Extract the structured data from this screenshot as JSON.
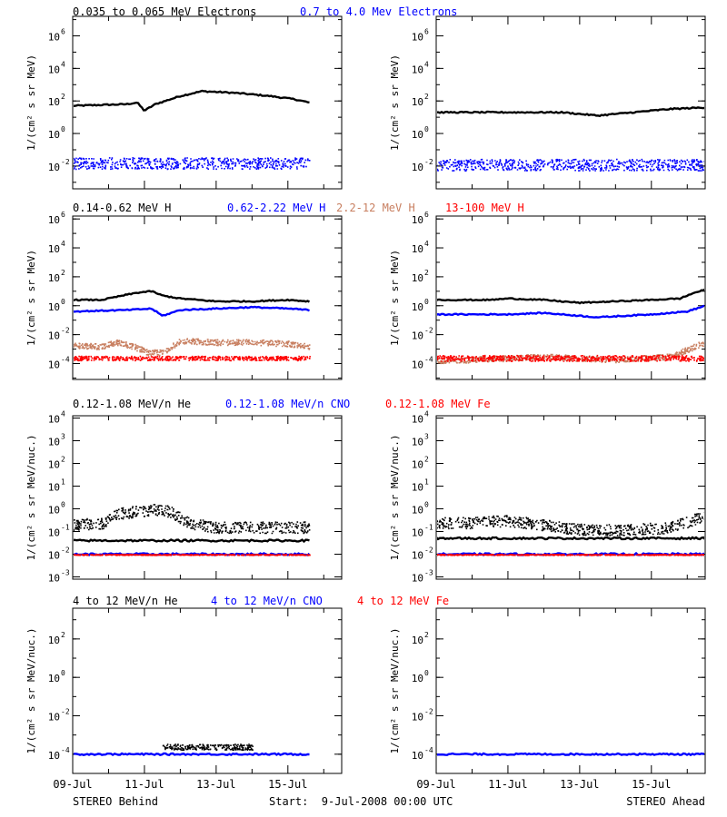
{
  "footer": {
    "left": "STEREO Behind",
    "center": "Start:  9-Jul-2008 00:00 UTC",
    "right": "STEREO Ahead"
  },
  "x_ticks": [
    "09-Jul",
    "11-Jul",
    "13-Jul",
    "15-Jul"
  ],
  "chart_data": [
    {
      "type": "scatter",
      "row": 1,
      "yscale": "log",
      "ylabel": "1/(cm² s sr MeV)",
      "yticks": [
        {
          "exp": -2,
          "label": "10"
        },
        {
          "exp": 0,
          "label": "10"
        },
        {
          "exp": 2,
          "label": "10"
        },
        {
          "exp": 4,
          "label": "10"
        },
        {
          "exp": 6,
          "label": "10"
        }
      ],
      "ylim_exp": [
        -3.4,
        7.2
      ],
      "xlim_days": [
        0,
        7.5
      ],
      "legend": [
        {
          "label": "0.035 to 0.065 MeV Electrons",
          "color": "#000000"
        },
        {
          "label": "0.7 to 4.0 Mev Electrons",
          "color": "#0000ff"
        }
      ],
      "panels": [
        {
          "name": "STEREO Behind",
          "series": [
            {
              "color": "#000000",
              "mode": "line",
              "t": [
                0,
                1.5,
                1.8,
                2.0,
                2.3,
                3.0,
                3.6,
                4.5,
                5.5,
                6.2,
                6.6
              ],
              "log_values": [
                1.7,
                1.8,
                1.9,
                1.4,
                1.8,
                2.3,
                2.6,
                2.5,
                2.3,
                2.1,
                1.9
              ]
            },
            {
              "color": "#0000ff",
              "mode": "band",
              "t": [
                0,
                6.6
              ],
              "log_values": [
                -1.8,
                -1.8
              ],
              "spread": 0.35
            }
          ]
        },
        {
          "name": "STEREO Ahead",
          "series": [
            {
              "color": "#000000",
              "mode": "line",
              "t": [
                0,
                2.5,
                3.5,
                4.5,
                5.5,
                6.5,
                7.5
              ],
              "log_values": [
                1.3,
                1.3,
                1.3,
                1.1,
                1.3,
                1.5,
                1.6
              ]
            },
            {
              "color": "#0000ff",
              "mode": "band",
              "t": [
                0,
                7.5
              ],
              "log_values": [
                -1.9,
                -1.9
              ],
              "spread": 0.35
            }
          ]
        }
      ]
    },
    {
      "type": "scatter",
      "row": 2,
      "yscale": "log",
      "ylabel": "1/(cm² s sr MeV)",
      "yticks": [
        {
          "exp": -4,
          "label": "10"
        },
        {
          "exp": -2,
          "label": "10"
        },
        {
          "exp": 0,
          "label": "10"
        },
        {
          "exp": 2,
          "label": "10"
        },
        {
          "exp": 4,
          "label": "10"
        },
        {
          "exp": 6,
          "label": "10"
        }
      ],
      "ylim_exp": [
        -5.1,
        6.2
      ],
      "xlim_days": [
        0,
        7.5
      ],
      "legend": [
        {
          "label": "0.14-0.62 MeV H",
          "color": "#000000"
        },
        {
          "label": "0.62-2.22 MeV H",
          "color": "#0000ff"
        },
        {
          "label": "2.2-12 MeV H",
          "color": "#c87f60"
        },
        {
          "label": "13-100 MeV H",
          "color": "#ff0000"
        }
      ],
      "panels": [
        {
          "name": "STEREO Behind",
          "series": [
            {
              "color": "#000000",
              "mode": "line",
              "t": [
                0,
                0.8,
                1.2,
                1.8,
                2.2,
                2.5,
                3.0,
                3.5,
                4.0,
                5.0,
                6.0,
                6.6
              ],
              "log_values": [
                0.4,
                0.4,
                0.6,
                0.9,
                1.0,
                0.7,
                0.5,
                0.4,
                0.3,
                0.3,
                0.4,
                0.3
              ]
            },
            {
              "color": "#0000ff",
              "mode": "line",
              "t": [
                0,
                1.5,
                2.2,
                2.5,
                3.0,
                4.0,
                5.0,
                6.0,
                6.6
              ],
              "log_values": [
                -0.4,
                -0.3,
                -0.2,
                -0.7,
                -0.3,
                -0.2,
                -0.1,
                -0.2,
                -0.3
              ]
            },
            {
              "color": "#c87f60",
              "mode": "band",
              "t": [
                0,
                0.8,
                1.2,
                1.7,
                2.1,
                2.5,
                3.0,
                4.0,
                5.0,
                6.0,
                6.6
              ],
              "log_values": [
                -2.7,
                -2.8,
                -2.5,
                -2.8,
                -3.2,
                -3.2,
                -2.4,
                -2.5,
                -2.5,
                -2.6,
                -2.8
              ],
              "spread": 0.2
            },
            {
              "color": "#ff0000",
              "mode": "band",
              "t": [
                0,
                6.6
              ],
              "log_values": [
                -3.6,
                -3.6
              ],
              "spread": 0.15
            }
          ]
        },
        {
          "name": "STEREO Ahead",
          "series": [
            {
              "color": "#000000",
              "mode": "line",
              "t": [
                0,
                1.5,
                2.0,
                3.0,
                4.0,
                5.0,
                6.0,
                6.8,
                7.2,
                7.5
              ],
              "log_values": [
                0.4,
                0.4,
                0.5,
                0.4,
                0.2,
                0.3,
                0.4,
                0.5,
                0.9,
                1.1
              ]
            },
            {
              "color": "#0000ff",
              "mode": "line",
              "t": [
                0,
                2.0,
                3.0,
                4.5,
                6.0,
                7.0,
                7.5
              ],
              "log_values": [
                -0.6,
                -0.6,
                -0.5,
                -0.8,
                -0.6,
                -0.4,
                0.0
              ]
            },
            {
              "color": "#c87f60",
              "mode": "band",
              "t": [
                0,
                3.0,
                5.0,
                6.5,
                7.2,
                7.5
              ],
              "log_values": [
                -3.8,
                -3.5,
                -3.7,
                -3.5,
                -2.8,
                -2.5
              ],
              "spread": 0.2
            },
            {
              "color": "#ff0000",
              "mode": "band",
              "t": [
                0,
                7.5
              ],
              "log_values": [
                -3.6,
                -3.6
              ],
              "spread": 0.2
            }
          ]
        }
      ]
    },
    {
      "type": "scatter",
      "row": 3,
      "yscale": "log",
      "ylabel": "1/(cm² s sr MeV/nuc.)",
      "yticks": [
        {
          "exp": -3,
          "label": "10"
        },
        {
          "exp": -2,
          "label": "10"
        },
        {
          "exp": -1,
          "label": "10"
        },
        {
          "exp": 0,
          "label": "10"
        },
        {
          "exp": 1,
          "label": "10"
        },
        {
          "exp": 2,
          "label": "10"
        },
        {
          "exp": 3,
          "label": "10"
        },
        {
          "exp": 4,
          "label": "10"
        }
      ],
      "ylim_exp": [
        -3.1,
        4.1
      ],
      "xlim_days": [
        0,
        7.5
      ],
      "legend": [
        {
          "label": "0.12-1.08 MeV/n He",
          "color": "#000000"
        },
        {
          "label": "0.12-1.08 MeV/n CNO",
          "color": "#0000ff"
        },
        {
          "label": "0.12-1.08 MeV Fe",
          "color": "#ff0000"
        }
      ],
      "panels": [
        {
          "name": "STEREO Behind",
          "series": [
            {
              "color": "#000000",
              "mode": "band",
              "t": [
                0,
                0.9,
                1.2,
                1.8,
                2.3,
                2.7,
                3.2,
                4.0,
                5.0,
                6.6
              ],
              "log_values": [
                -0.7,
                -0.6,
                -0.2,
                -0.1,
                0.0,
                -0.1,
                -0.6,
                -0.8,
                -0.8,
                -0.8
              ],
              "spread": 0.25
            },
            {
              "color": "#000000",
              "mode": "line",
              "t": [
                0,
                6.6
              ],
              "log_values": [
                -1.4,
                -1.4
              ]
            },
            {
              "color": "#0000ff",
              "mode": "line",
              "t": [
                0,
                6.6
              ],
              "log_values": [
                -2.0,
                -2.0
              ]
            },
            {
              "color": "#ff0000",
              "mode": "band",
              "t": [
                0,
                6.6
              ],
              "log_values": [
                -2.0,
                -2.0
              ],
              "spread": 0.02
            }
          ]
        },
        {
          "name": "STEREO Ahead",
          "series": [
            {
              "color": "#000000",
              "mode": "band",
              "t": [
                0,
                1.0,
                2.0,
                3.0,
                4.0,
                5.5,
                6.5,
                7.3,
                7.5
              ],
              "log_values": [
                -0.6,
                -0.6,
                -0.5,
                -0.7,
                -0.9,
                -0.9,
                -0.8,
                -0.4,
                -0.2
              ],
              "spread": 0.25
            },
            {
              "color": "#000000",
              "mode": "line",
              "t": [
                0,
                7.5
              ],
              "log_values": [
                -1.3,
                -1.3
              ]
            },
            {
              "color": "#0000ff",
              "mode": "line",
              "t": [
                0,
                7.5
              ],
              "log_values": [
                -2.0,
                -2.0
              ]
            },
            {
              "color": "#ff0000",
              "mode": "band",
              "t": [
                0,
                7.5
              ],
              "log_values": [
                -2.0,
                -2.0
              ],
              "spread": 0.02
            }
          ]
        }
      ]
    },
    {
      "type": "scatter",
      "row": 4,
      "yscale": "log",
      "ylabel": "1/(cm² s sr MeV/nuc.)",
      "yticks": [
        {
          "exp": -4,
          "label": "10"
        },
        {
          "exp": -2,
          "label": "10"
        },
        {
          "exp": 0,
          "label": "10"
        },
        {
          "exp": 2,
          "label": "10"
        }
      ],
      "ylim_exp": [
        -5.0,
        3.6
      ],
      "xlim_days": [
        0,
        7.5
      ],
      "legend": [
        {
          "label": "4 to 12 MeV/n He",
          "color": "#000000"
        },
        {
          "label": "4 to 12 MeV/n CNO",
          "color": "#0000ff"
        },
        {
          "label": "4 to 12 MeV Fe",
          "color": "#ff0000"
        }
      ],
      "panels": [
        {
          "name": "STEREO Behind",
          "series": [
            {
              "color": "#0000ff",
              "mode": "line",
              "t": [
                0,
                6.6
              ],
              "log_values": [
                -4.0,
                -4.0
              ]
            },
            {
              "color": "#000000",
              "mode": "band",
              "t": [
                2.5,
                5.0
              ],
              "log_values": [
                -3.6,
                -3.6
              ],
              "spread": 0.15
            }
          ]
        },
        {
          "name": "STEREO Ahead",
          "series": [
            {
              "color": "#0000ff",
              "mode": "line",
              "t": [
                0,
                7.5
              ],
              "log_values": [
                -4.0,
                -4.0
              ]
            }
          ]
        }
      ]
    }
  ]
}
